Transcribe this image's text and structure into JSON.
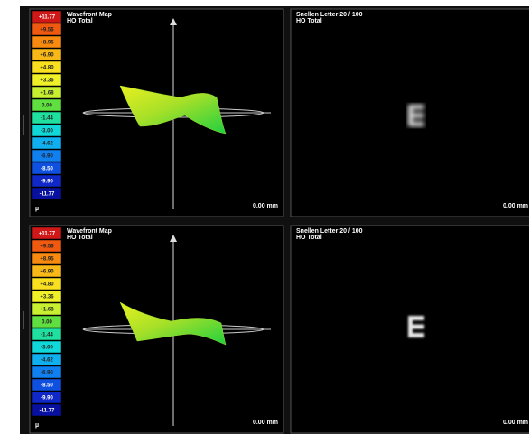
{
  "rows": [
    {
      "wavefront": {
        "title": "Wavefront Map",
        "subtitle": "HO Total",
        "scale": [
          "+11.77",
          "+9.56",
          "+8.95",
          "+6.90",
          "+4.80",
          "+3.36",
          "+1.68",
          "0.00",
          "-1.44",
          "-3.00",
          "-4.62",
          "-6.90",
          "-8.50",
          "-9.90",
          "-11.77"
        ],
        "unit": "µ",
        "distance": "0.00 mm"
      },
      "snellen": {
        "title": "Snellen Letter 20 / 100",
        "subtitle": "HO Total",
        "distance": "0.00 mm"
      }
    },
    {
      "wavefront": {
        "title": "Wavefront Map",
        "subtitle": "HO Total",
        "scale": [
          "+11.77",
          "+9.56",
          "+8.95",
          "+6.90",
          "+4.80",
          "+3.36",
          "+1.68",
          "0.00",
          "-1.44",
          "-3.00",
          "-4.62",
          "-6.90",
          "-8.50",
          "-9.90",
          "-11.77"
        ],
        "unit": "µ",
        "distance": "0.00 mm"
      },
      "snellen": {
        "title": "Snellen Letter 20 / 100",
        "subtitle": "HO Total",
        "distance": "0.00 mm"
      }
    }
  ]
}
